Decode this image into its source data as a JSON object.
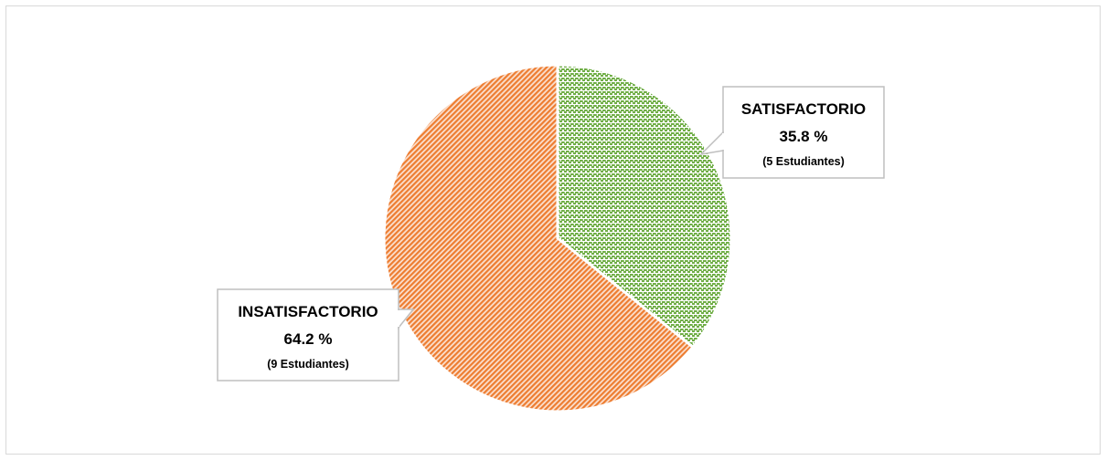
{
  "chart_data": {
    "type": "pie",
    "slices": [
      {
        "category": "SATISFACTORIO",
        "value": 35.8,
        "percent_label": "35.8 %",
        "count_label": "(5 Estudiantes)",
        "color": "#70ad47"
      },
      {
        "category": "INSATISFACTORIO",
        "value": 64.2,
        "percent_label": "64.2 %",
        "count_label": "(9 Estudiantes)",
        "color": "#ed7d31"
      }
    ],
    "start_angle": "12 o'clock",
    "direction": "clockwise",
    "fill_pattern": "hatched",
    "legend": "none"
  }
}
